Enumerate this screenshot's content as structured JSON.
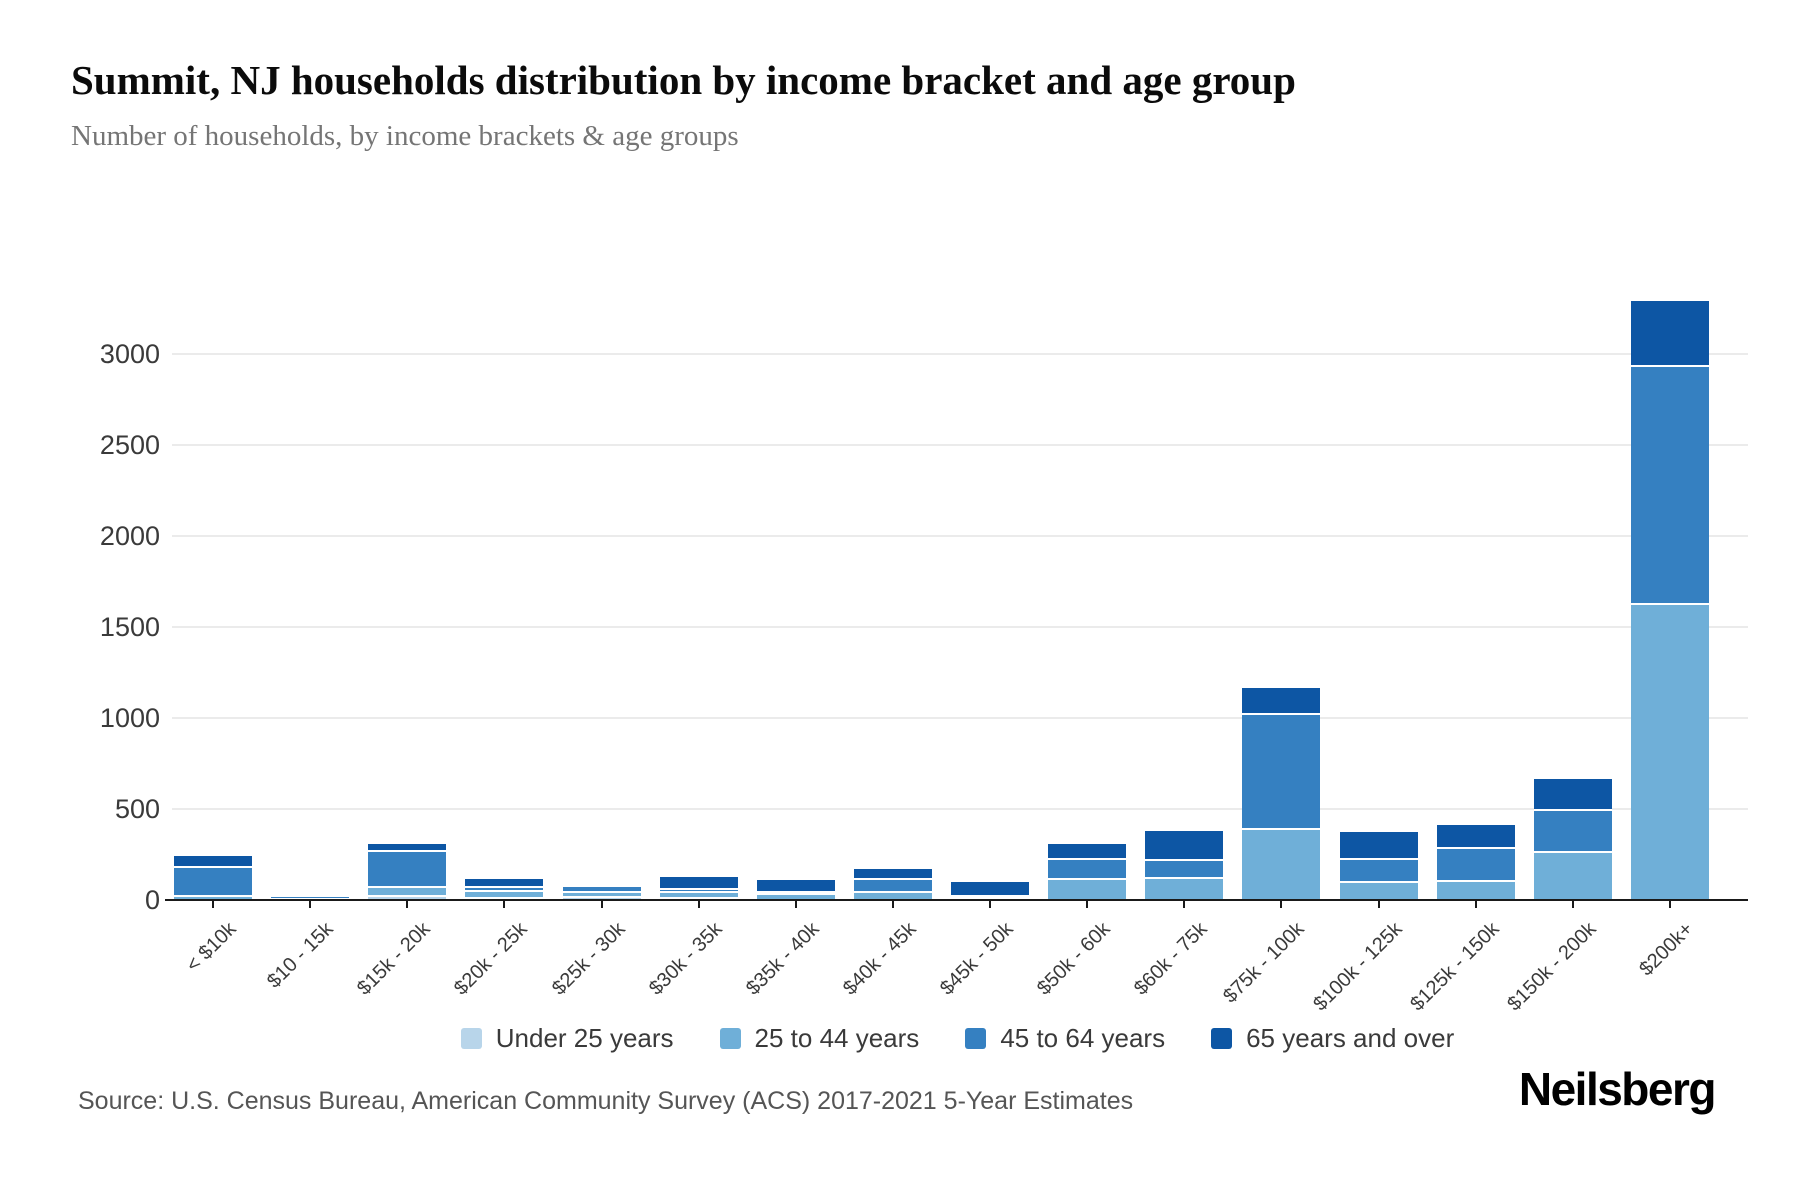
{
  "header": {
    "title": "Summit, NJ households distribution by income bracket and age group",
    "subtitle": "Number of households, by income brackets & age groups"
  },
  "footer": {
    "source": "Source: U.S. Census Bureau, American Community Survey (ACS) 2017-2021 5-Year Estimates",
    "brand": "Neilsberg"
  },
  "chart_data": {
    "type": "bar",
    "stacked": true,
    "title": "Summit, NJ households distribution by income bracket and age group",
    "xlabel": "",
    "ylabel": "Number of households",
    "categories": [
      "< $10k",
      "$10 - 15k",
      "$15k - 20k",
      "$20k - 25k",
      "$25k - 30k",
      "$30k - 35k",
      "$35k - 40k",
      "$40k - 45k",
      "$45k - 50k",
      "$50k - 60k",
      "$60k - 75k",
      "$75k - 100k",
      "$100k - 125k",
      "$125k - 150k",
      "$150k - 200k",
      "$200k+"
    ],
    "series": [
      {
        "name": "Under 25 years",
        "color": "#b8d5ea",
        "values": [
          0,
          0,
          15,
          5,
          10,
          5,
          0,
          0,
          0,
          0,
          0,
          0,
          0,
          0,
          0,
          0
        ]
      },
      {
        "name": "25 to 44 years",
        "color": "#6fafd8",
        "values": [
          15,
          5,
          50,
          40,
          30,
          35,
          30,
          40,
          5,
          110,
          115,
          385,
          95,
          100,
          260,
          1620
        ]
      },
      {
        "name": "45 to 64 years",
        "color": "#3580c1",
        "values": [
          160,
          15,
          200,
          20,
          30,
          15,
          10,
          70,
          10,
          110,
          100,
          630,
          125,
          180,
          230,
          1310
        ]
      },
      {
        "name": "65 years and over",
        "color": "#0d56a4",
        "values": [
          65,
          5,
          45,
          50,
          15,
          70,
          70,
          60,
          85,
          85,
          165,
          150,
          155,
          130,
          175,
          360
        ]
      }
    ],
    "yticks": [
      0,
      500,
      1000,
      1500,
      2000,
      2500,
      3000
    ],
    "ylim": [
      0,
      3300
    ],
    "grid": true,
    "legend_position": "bottom",
    "axis_color": "#1a1a1a",
    "grid_color": "#ebebeb"
  }
}
